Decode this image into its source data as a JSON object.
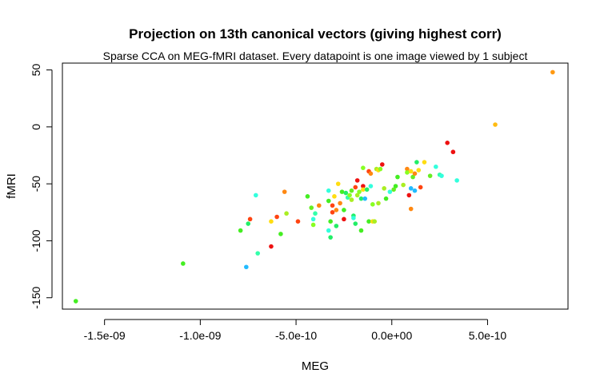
{
  "chart_data": {
    "type": "scatter",
    "title": "Projection on 13th canonical vectors (giving highest corr)",
    "subtitle": "Sparse CCA on MEG-fMRI dataset. Every datapoint is one image viewed by 1 subject",
    "xlabel": "MEG",
    "ylabel": "fMRI",
    "xlim": [
      -1.72e-09,
      9.2e-10
    ],
    "ylim": [
      -160,
      56
    ],
    "x_ticks": [
      -1.5e-09,
      -1e-09,
      -5e-10,
      0,
      5e-10
    ],
    "x_tick_labels": [
      "-1.5e-09",
      "-1.0e-09",
      "-5.0e-10",
      "0.0e+00",
      "5.0e-10"
    ],
    "y_ticks": [
      -150,
      -100,
      -50,
      0,
      50
    ],
    "y_tick_labels": [
      "-150",
      "-100",
      "-50",
      "0",
      "50"
    ],
    "grid": false,
    "points": [
      {
        "x": -1.65e-09,
        "y": -153,
        "color": "#44ee22"
      },
      {
        "x": -1.09e-09,
        "y": -120,
        "color": "#44ee22"
      },
      {
        "x": -7.9e-10,
        "y": -91,
        "color": "#44ee22"
      },
      {
        "x": -7.6e-10,
        "y": -123,
        "color": "#22bbff"
      },
      {
        "x": -7.5e-10,
        "y": -85,
        "color": "#22ee66"
      },
      {
        "x": -7.4e-10,
        "y": -81,
        "color": "#ff4411"
      },
      {
        "x": -7.1e-10,
        "y": -60,
        "color": "#33ffdd"
      },
      {
        "x": -7e-10,
        "y": -111,
        "color": "#33ffaa"
      },
      {
        "x": -6.3e-10,
        "y": -105,
        "color": "#ee1111"
      },
      {
        "x": -6.3e-10,
        "y": -83,
        "color": "#ffdd11"
      },
      {
        "x": -6e-10,
        "y": -79,
        "color": "#ff4411"
      },
      {
        "x": -5.8e-10,
        "y": -94,
        "color": "#44ee22"
      },
      {
        "x": -5.6e-10,
        "y": -57,
        "color": "#ff8811"
      },
      {
        "x": -5.5e-10,
        "y": -76,
        "color": "#aaee22"
      },
      {
        "x": -4.9e-10,
        "y": -83,
        "color": "#ff4411"
      },
      {
        "x": -4.4e-10,
        "y": -61,
        "color": "#44ee22"
      },
      {
        "x": -4.2e-10,
        "y": -71,
        "color": "#66ee22"
      },
      {
        "x": -4.1e-10,
        "y": -81,
        "color": "#33ffdd"
      },
      {
        "x": -4e-10,
        "y": -76,
        "color": "#33ffaa"
      },
      {
        "x": -4.1e-10,
        "y": -86,
        "color": "#88ff22"
      },
      {
        "x": -3.8e-10,
        "y": -69,
        "color": "#ff8811"
      },
      {
        "x": -3.3e-10,
        "y": -56,
        "color": "#33ffdd"
      },
      {
        "x": -3.3e-10,
        "y": -65,
        "color": "#44ee22"
      },
      {
        "x": -3.3e-10,
        "y": -91,
        "color": "#33ffdd"
      },
      {
        "x": -3.2e-10,
        "y": -83,
        "color": "#44ee22"
      },
      {
        "x": -3.2e-10,
        "y": -97,
        "color": "#22ee66"
      },
      {
        "x": -3.1e-10,
        "y": -69,
        "color": "#ff4411"
      },
      {
        "x": -3.1e-10,
        "y": -75,
        "color": "#ff4411"
      },
      {
        "x": -3e-10,
        "y": -61,
        "color": "#ffdd11"
      },
      {
        "x": -2.9e-10,
        "y": -73,
        "color": "#ff8811"
      },
      {
        "x": -2.9e-10,
        "y": -87,
        "color": "#22ee66"
      },
      {
        "x": -2.8e-10,
        "y": -50,
        "color": "#ffdd11"
      },
      {
        "x": -2.7e-10,
        "y": -67,
        "color": "#ff8811"
      },
      {
        "x": -2.6e-10,
        "y": -57,
        "color": "#44ee22"
      },
      {
        "x": -2.5e-10,
        "y": -73,
        "color": "#44ee22"
      },
      {
        "x": -2.5e-10,
        "y": -81,
        "color": "#ee1111"
      },
      {
        "x": -2.4e-10,
        "y": -58,
        "color": "#22ee66"
      },
      {
        "x": -2.3e-10,
        "y": -62,
        "color": "#33ffaa"
      },
      {
        "x": -2.2e-10,
        "y": -60,
        "color": "#88ff22"
      },
      {
        "x": -2.1e-10,
        "y": -56,
        "color": "#66ee22"
      },
      {
        "x": -2.1e-10,
        "y": -64,
        "color": "#aaee22"
      },
      {
        "x": -2e-10,
        "y": -78,
        "color": "#22ee66"
      },
      {
        "x": -2e-10,
        "y": -80,
        "color": "#33ffdd"
      },
      {
        "x": -1.9e-10,
        "y": -53,
        "color": "#ff4411"
      },
      {
        "x": -1.9e-10,
        "y": -85,
        "color": "#22ee66"
      },
      {
        "x": -1.8e-10,
        "y": -47,
        "color": "#ee1111"
      },
      {
        "x": -1.8e-10,
        "y": -60,
        "color": "#aaee22"
      },
      {
        "x": -1.7e-10,
        "y": -57,
        "color": "#88ff22"
      },
      {
        "x": -1.6e-10,
        "y": -91,
        "color": "#44ee22"
      },
      {
        "x": -1.6e-10,
        "y": -63,
        "color": "#22ee66"
      },
      {
        "x": -1.5e-10,
        "y": -36,
        "color": "#88ff22"
      },
      {
        "x": -1.5e-10,
        "y": -52,
        "color": "#ee1111"
      },
      {
        "x": -1.5e-10,
        "y": -55,
        "color": "#ffdd11"
      },
      {
        "x": -1.4e-10,
        "y": -63,
        "color": "#22bbff"
      },
      {
        "x": -1.3e-10,
        "y": -55,
        "color": "#22ee66"
      },
      {
        "x": -1.2e-10,
        "y": -39,
        "color": "#ff4411"
      },
      {
        "x": -1.2e-10,
        "y": -83,
        "color": "#44ee22"
      },
      {
        "x": -1.1e-10,
        "y": -52,
        "color": "#33ffdd"
      },
      {
        "x": -1.1e-10,
        "y": -41,
        "color": "#ff8811"
      },
      {
        "x": -1e-10,
        "y": -68,
        "color": "#88ff22"
      },
      {
        "x": -1e-10,
        "y": -83,
        "color": "#ffdd11"
      },
      {
        "x": -9e-11,
        "y": -83,
        "color": "#aaee22"
      },
      {
        "x": -8e-11,
        "y": -37,
        "color": "#aaee22"
      },
      {
        "x": -7e-11,
        "y": -38,
        "color": "#ffdd11"
      },
      {
        "x": -7e-11,
        "y": -67,
        "color": "#aaee22"
      },
      {
        "x": -6e-11,
        "y": -37,
        "color": "#88ff22"
      },
      {
        "x": -5e-11,
        "y": -33,
        "color": "#ee1111"
      },
      {
        "x": -4e-11,
        "y": -54,
        "color": "#aaee22"
      },
      {
        "x": -3e-11,
        "y": -63,
        "color": "#44ee22"
      },
      {
        "x": -1e-11,
        "y": -57,
        "color": "#33ffdd"
      },
      {
        "x": 1e-11,
        "y": -55,
        "color": "#66ee22"
      },
      {
        "x": 2e-11,
        "y": -52,
        "color": "#44ee22"
      },
      {
        "x": 3e-11,
        "y": -44,
        "color": "#44ee22"
      },
      {
        "x": 6e-11,
        "y": -51,
        "color": "#aaee22"
      },
      {
        "x": 8e-11,
        "y": -37,
        "color": "#ff8811"
      },
      {
        "x": 8e-11,
        "y": -40,
        "color": "#88ff22"
      },
      {
        "x": 9e-11,
        "y": -60,
        "color": "#ee1111"
      },
      {
        "x": 1e-10,
        "y": -39,
        "color": "#ffdd11"
      },
      {
        "x": 1e-10,
        "y": -54,
        "color": "#22bbff"
      },
      {
        "x": 1e-10,
        "y": -72,
        "color": "#ff8811"
      },
      {
        "x": 1.1e-10,
        "y": -44,
        "color": "#66ee22"
      },
      {
        "x": 1.2e-10,
        "y": -41,
        "color": "#ff8811"
      },
      {
        "x": 1.2e-10,
        "y": -56,
        "color": "#22bbff"
      },
      {
        "x": 1.3e-10,
        "y": -31,
        "color": "#22ee66"
      },
      {
        "x": 1.4e-10,
        "y": -38,
        "color": "#ffdd11"
      },
      {
        "x": 1.5e-10,
        "y": -53,
        "color": "#ff4411"
      },
      {
        "x": 1.7e-10,
        "y": -31,
        "color": "#ffdd11"
      },
      {
        "x": 2e-10,
        "y": -43,
        "color": "#66ee22"
      },
      {
        "x": 2.3e-10,
        "y": -35,
        "color": "#33ffdd"
      },
      {
        "x": 2.5e-10,
        "y": -42,
        "color": "#33ffaa"
      },
      {
        "x": 2.6e-10,
        "y": -43,
        "color": "#33ffdd"
      },
      {
        "x": 2.9e-10,
        "y": -14,
        "color": "#ee1111"
      },
      {
        "x": 3.2e-10,
        "y": -22,
        "color": "#ee1111"
      },
      {
        "x": 3.4e-10,
        "y": -47,
        "color": "#33ffdd"
      },
      {
        "x": 5.4e-10,
        "y": 2,
        "color": "#ffbb11"
      },
      {
        "x": 8.4e-10,
        "y": 48,
        "color": "#ff9911"
      }
    ]
  }
}
